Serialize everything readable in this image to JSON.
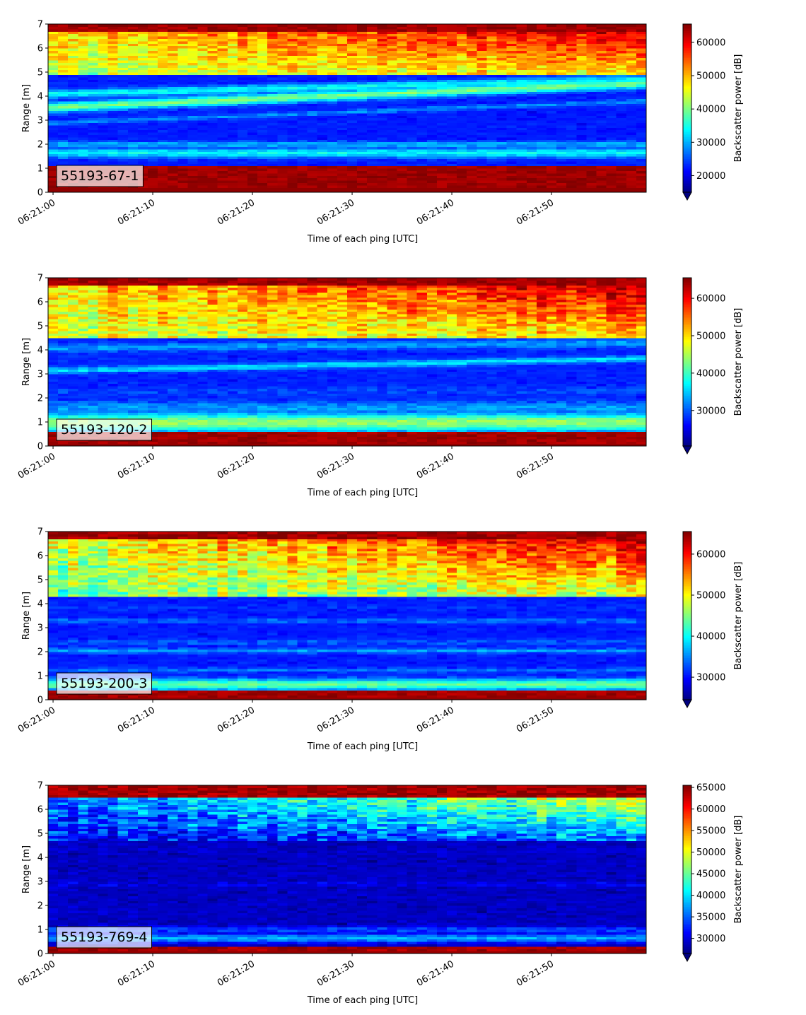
{
  "chart_data": [
    {
      "type": "heatmap",
      "panel_label": "55193-67-1",
      "xlabel": "Time of each ping [UTC]",
      "ylabel": "Range [m]",
      "colorbar_label": "Backscatter power [dB]",
      "colormap": "jet",
      "x_ticks": [
        "06:21:00",
        "06:21:10",
        "06:21:20",
        "06:21:30",
        "06:21:40",
        "06:21:50"
      ],
      "x_range_seconds": [
        -0.5,
        59.5
      ],
      "ylim": [
        0,
        7
      ],
      "y_ticks": [
        0,
        1,
        2,
        3,
        4,
        5,
        6,
        7
      ],
      "clim": [
        15000,
        65500
      ],
      "colorbar_ticks": [
        20000,
        30000,
        40000,
        50000,
        60000
      ],
      "colorbar_extend": "min",
      "features": {
        "bottom_echo": {
          "from": 0.2,
          "to": 1.1,
          "value": 64000
        },
        "bands": [
          {
            "y_start": 1.65,
            "y_end": 1.65,
            "width": 0.22,
            "value": 34000
          },
          {
            "y_start": 2.0,
            "y_end": 2.0,
            "width": 0.15,
            "value": 30000
          },
          {
            "y_start": 3.55,
            "y_end": 4.55,
            "width": 0.22,
            "value": 40000
          },
          {
            "y_start": 4.1,
            "y_end": 4.7,
            "width": 0.2,
            "value": 34000
          },
          {
            "y_start": 2.9,
            "y_end": 3.8,
            "width": 0.12,
            "value": 28000
          }
        ],
        "upper_layer": {
          "start": 4.9,
          "top": 6.75,
          "value_start": 43000,
          "value_end": 58000
        },
        "surface": {
          "from": 6.75,
          "value": 64000
        },
        "background": 21000
      }
    },
    {
      "type": "heatmap",
      "panel_label": "55193-120-2",
      "xlabel": "Time of each ping [UTC]",
      "ylabel": "Range [m]",
      "colorbar_label": "Backscatter power [dB]",
      "colormap": "jet",
      "x_ticks": [
        "06:21:00",
        "06:21:10",
        "06:21:20",
        "06:21:30",
        "06:21:40",
        "06:21:50"
      ],
      "x_range_seconds": [
        -0.5,
        59.5
      ],
      "ylim": [
        0,
        7
      ],
      "y_ticks": [
        0,
        1,
        2,
        3,
        4,
        5,
        6,
        7
      ],
      "clim": [
        20500,
        65500
      ],
      "colorbar_ticks": [
        30000,
        40000,
        50000,
        60000
      ],
      "colorbar_extend": "min",
      "features": {
        "bottom_echo": {
          "from": 0.1,
          "to": 0.65,
          "value": 64000
        },
        "bands": [
          {
            "y_start": 1.0,
            "y_end": 1.0,
            "width": 0.4,
            "value": 44000
          },
          {
            "y_start": 1.6,
            "y_end": 1.6,
            "width": 0.3,
            "value": 33000
          },
          {
            "y_start": 2.3,
            "y_end": 2.3,
            "width": 0.2,
            "value": 29000
          },
          {
            "y_start": 3.15,
            "y_end": 3.65,
            "width": 0.15,
            "value": 36000
          },
          {
            "y_start": 4.1,
            "y_end": 4.3,
            "width": 0.2,
            "value": 33000
          }
        ],
        "upper_layer": {
          "start": 4.55,
          "top": 6.75,
          "value_start": 46000,
          "value_end": 59000
        },
        "surface": {
          "from": 6.75,
          "value": 64000
        },
        "background": 26000
      }
    },
    {
      "type": "heatmap",
      "panel_label": "55193-200-3",
      "xlabel": "Time of each ping [UTC]",
      "ylabel": "Range [m]",
      "colorbar_label": "Backscatter power [dB]",
      "colormap": "jet",
      "x_ticks": [
        "06:21:00",
        "06:21:10",
        "06:21:20",
        "06:21:30",
        "06:21:40",
        "06:21:50"
      ],
      "x_range_seconds": [
        -0.5,
        59.5
      ],
      "ylim": [
        0,
        7
      ],
      "y_ticks": [
        0,
        1,
        2,
        3,
        4,
        5,
        6,
        7
      ],
      "clim": [
        24500,
        65500
      ],
      "colorbar_ticks": [
        30000,
        40000,
        50000,
        60000
      ],
      "colorbar_extend": "min",
      "features": {
        "bottom_echo": {
          "from": 0.1,
          "to": 0.4,
          "value": 64000
        },
        "bands": [
          {
            "y_start": 0.65,
            "y_end": 0.65,
            "width": 0.25,
            "value": 44000
          },
          {
            "y_start": 1.25,
            "y_end": 1.25,
            "width": 0.12,
            "value": 34000
          },
          {
            "y_start": 2.05,
            "y_end": 2.05,
            "width": 0.12,
            "value": 36000
          },
          {
            "y_start": 2.4,
            "y_end": 2.4,
            "width": 0.15,
            "value": 33000
          },
          {
            "y_start": 3.3,
            "y_end": 3.3,
            "width": 0.12,
            "value": 34000
          },
          {
            "y_start": 3.85,
            "y_end": 3.85,
            "width": 0.15,
            "value": 31000
          }
        ],
        "upper_layer": {
          "start": 4.35,
          "top": 6.7,
          "value_start": 44000,
          "value_end": 58000
        },
        "surface": {
          "from": 6.7,
          "value": 64000
        },
        "background": 29000
      }
    },
    {
      "type": "heatmap",
      "panel_label": "55193-769-4",
      "xlabel": "Time of each ping [UTC]",
      "ylabel": "Range [m]",
      "colorbar_label": "Backscatter power [dB]",
      "colormap": "jet",
      "x_ticks": [
        "06:21:00",
        "06:21:10",
        "06:21:20",
        "06:21:30",
        "06:21:40",
        "06:21:50"
      ],
      "x_range_seconds": [
        -0.5,
        59.5
      ],
      "ylim": [
        0,
        7
      ],
      "y_ticks": [
        0,
        1,
        2,
        3,
        4,
        5,
        6,
        7
      ],
      "clim": [
        26500,
        65500
      ],
      "colorbar_ticks": [
        30000,
        35000,
        40000,
        45000,
        50000,
        55000,
        60000,
        65000
      ],
      "colorbar_extend": "min",
      "features": {
        "bottom_echo": {
          "from": 0.1,
          "to": 0.3,
          "value": 64000
        },
        "bands": [
          {
            "y_start": 0.65,
            "y_end": 0.65,
            "width": 0.2,
            "value": 38000
          },
          {
            "y_start": 1.0,
            "y_end": 1.0,
            "width": 0.15,
            "value": 34000
          },
          {
            "y_start": 2.9,
            "y_end": 2.9,
            "width": 0.1,
            "value": 31000
          },
          {
            "y_start": 4.3,
            "y_end": 4.3,
            "width": 0.1,
            "value": 29000
          }
        ],
        "upper_layer": {
          "start": 4.7,
          "top": 6.55,
          "value_start": 31000,
          "value_end": 45000
        },
        "surface": {
          "from": 6.55,
          "value": 64000
        },
        "background": 27500
      }
    }
  ]
}
